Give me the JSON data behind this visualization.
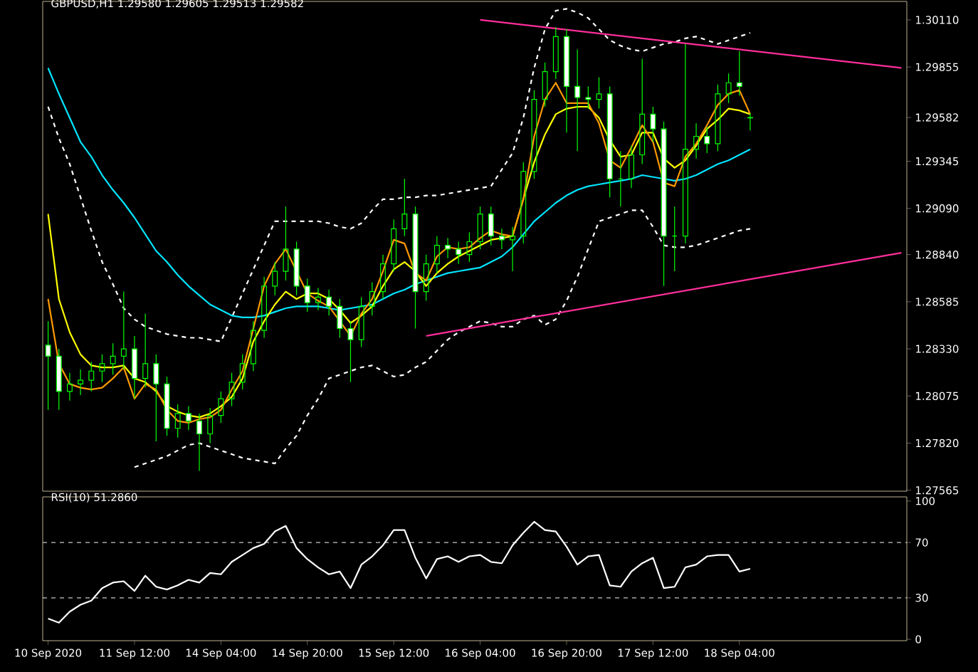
{
  "chart_data": [
    {
      "type": "candlestick",
      "title": "GBPUSD,H1  1.29580 1.29605 1.29513 1.29582",
      "tick_labels": "y",
      "ylim": [
        1.2756,
        1.3021
      ],
      "categories": [
        null,
        null,
        null,
        null,
        null,
        null,
        null,
        null,
        null,
        null,
        null,
        null,
        null,
        null,
        null,
        null,
        null,
        null,
        null,
        null,
        null,
        null,
        null,
        null,
        null,
        null,
        null,
        null,
        null,
        null,
        null,
        null,
        null,
        null,
        null,
        null,
        null,
        null,
        null,
        null,
        null,
        null,
        null,
        null,
        null,
        null,
        null,
        null,
        null,
        null,
        null,
        null,
        null,
        null,
        null,
        null,
        null,
        null,
        null,
        null,
        null,
        null,
        null,
        null,
        null,
        null,
        null,
        null,
        null,
        null,
        null,
        null,
        null,
        null,
        null,
        null,
        null,
        null,
        null,
        null
      ],
      "yticks": [
        {
          "value": 1.3011,
          "label": "1.30110"
        },
        {
          "value": 1.29855,
          "label": "1.29855"
        },
        {
          "value": 1.29582,
          "label": "1.29582"
        },
        {
          "value": 1.29345,
          "label": "1.29345"
        },
        {
          "value": 1.2909,
          "label": "1.29090"
        },
        {
          "value": 1.2884,
          "label": "1.28840"
        },
        {
          "value": 1.28585,
          "label": "1.28585"
        },
        {
          "value": 1.2833,
          "label": "1.28330"
        },
        {
          "value": 1.28075,
          "label": "1.28075"
        },
        {
          "value": 1.2782,
          "label": "1.27820"
        },
        {
          "value": 1.27565,
          "label": "1.27565"
        }
      ],
      "series": [
        {
          "type": "line",
          "color": "#ffffff",
          "line_style": "dashed",
          "values": [
            1.2964,
            1.2947,
            1.2933,
            1.2915,
            1.2897,
            1.288,
            1.2868,
            1.2855,
            1.2849,
            1.2845,
            1.2843,
            1.2841,
            1.284,
            1.2839,
            1.2839,
            1.2838,
            1.2837,
            1.285,
            1.2863,
            1.2876,
            1.2889,
            1.2902,
            1.2902,
            1.2902,
            1.2902,
            1.2902,
            1.2901,
            1.2899,
            1.2898,
            1.2901,
            1.2908,
            1.2914,
            1.2914,
            1.2915,
            1.2915,
            1.2916,
            1.2916,
            1.2917,
            1.2918,
            1.2919,
            1.292,
            1.2921,
            1.293,
            1.2939,
            1.2958,
            1.2985,
            1.3006,
            1.3016,
            1.3017,
            1.3015,
            1.3012,
            1.3006,
            1.3,
            1.2997,
            1.2995,
            1.2994,
            1.2996,
            1.2998,
            1.2999,
            1.3001,
            1.3002,
            1.3,
            1.2998,
            1.3,
            1.3002,
            1.3004,
            null,
            null,
            null,
            null,
            null,
            null,
            null,
            null,
            null,
            null,
            null,
            null,
            null,
            null
          ]
        },
        {
          "type": "line",
          "color": "#ffffff",
          "line_style": "dashed",
          "values": [
            null,
            null,
            null,
            null,
            null,
            null,
            null,
            null,
            1.2769,
            1.2771,
            1.2773,
            1.2775,
            1.2778,
            1.2781,
            1.2782,
            1.278,
            1.2778,
            1.2776,
            1.2774,
            1.2773,
            1.2772,
            1.2771,
            1.2779,
            1.2786,
            1.2797,
            1.2806,
            1.2817,
            1.2819,
            1.2821,
            1.2823,
            1.2824,
            1.2821,
            1.2818,
            1.2819,
            1.2823,
            1.2826,
            1.2832,
            1.2838,
            1.2842,
            1.2845,
            1.2848,
            1.2847,
            1.2845,
            1.2845,
            1.2849,
            1.2851,
            1.2846,
            1.2849,
            1.2859,
            1.2872,
            1.2887,
            1.2902,
            1.2904,
            1.2906,
            1.2908,
            1.2908,
            1.2899,
            1.2889,
            1.2888,
            1.2888,
            1.2889,
            1.2891,
            1.2893,
            1.2895,
            1.2897,
            1.2898,
            null,
            null,
            null,
            null,
            null,
            null,
            null,
            null,
            null,
            null,
            null,
            null,
            null,
            null
          ]
        },
        {
          "type": "line",
          "color": "#00e5ff",
          "values": [
            1.2985,
            1.2971,
            1.2958,
            1.2945,
            1.2937,
            1.2927,
            1.2919,
            1.2912,
            1.2904,
            1.2895,
            1.2886,
            1.288,
            1.2873,
            1.2867,
            1.2862,
            1.2857,
            1.2854,
            1.2851,
            1.285,
            1.285,
            1.2851,
            1.2853,
            1.2855,
            1.2856,
            1.2856,
            1.2856,
            1.2855,
            1.2854,
            1.2855,
            1.2856,
            1.2857,
            1.286,
            1.2863,
            1.2865,
            1.2868,
            1.287,
            1.2872,
            1.2874,
            1.2875,
            1.2876,
            1.2877,
            1.288,
            1.2883,
            1.2888,
            1.2895,
            1.2902,
            1.2907,
            1.2912,
            1.2916,
            1.2919,
            1.2921,
            1.2922,
            1.2923,
            1.2924,
            1.2925,
            1.2927,
            1.2926,
            1.2925,
            1.2924,
            1.2925,
            1.2927,
            1.293,
            1.2933,
            1.2935,
            1.2938,
            1.2941,
            null,
            null,
            null,
            null,
            null,
            null,
            null,
            null,
            null,
            null,
            null,
            null,
            null,
            null
          ]
        },
        {
          "type": "line",
          "color": "#ffff00",
          "values": [
            1.2906,
            1.286,
            1.2842,
            1.283,
            1.2824,
            1.2823,
            1.2823,
            1.2824,
            1.2817,
            1.2815,
            1.281,
            1.2802,
            1.2799,
            1.2797,
            1.2796,
            1.2798,
            1.2802,
            1.2807,
            1.2817,
            1.2837,
            1.2848,
            1.2857,
            1.2864,
            1.286,
            1.2863,
            1.2863,
            1.286,
            1.2854,
            1.2847,
            1.2851,
            1.2856,
            1.2867,
            1.2876,
            1.288,
            1.2875,
            1.2867,
            1.2874,
            1.2879,
            1.2883,
            1.2886,
            1.2889,
            1.2892,
            1.2893,
            1.2894,
            1.2914,
            1.2934,
            1.2949,
            1.296,
            1.2963,
            1.2964,
            1.2964,
            1.2958,
            1.2946,
            1.2937,
            1.2938,
            1.295,
            1.295,
            1.2936,
            1.2931,
            1.2935,
            1.2943,
            1.2952,
            1.2957,
            1.2963,
            1.2962,
            1.296,
            null,
            null,
            null,
            null,
            null,
            null,
            null,
            null,
            null,
            null,
            null,
            null,
            null,
            null
          ]
        },
        {
          "type": "line",
          "color": "#ff9900",
          "values": [
            1.286,
            1.2825,
            1.2814,
            1.2812,
            1.2811,
            1.2812,
            1.2817,
            1.2823,
            1.2806,
            1.2814,
            1.2811,
            1.28,
            1.2794,
            1.2793,
            1.2795,
            1.2796,
            1.28,
            1.2811,
            1.2821,
            1.2844,
            1.2867,
            1.2879,
            1.2887,
            1.2875,
            1.2863,
            1.2859,
            1.2856,
            1.2848,
            1.284,
            1.2852,
            1.286,
            1.2875,
            1.2892,
            1.289,
            1.2874,
            1.287,
            1.2883,
            1.2888,
            1.2887,
            1.2888,
            1.2893,
            1.2897,
            1.2895,
            1.2894,
            1.2914,
            1.2948,
            1.2968,
            1.2977,
            1.2966,
            1.2966,
            1.2966,
            1.2955,
            1.2935,
            1.2931,
            1.2942,
            1.2954,
            1.2945,
            1.2923,
            1.2921,
            1.2937,
            1.2944,
            1.2954,
            1.2965,
            1.2971,
            1.2973,
            1.296,
            null,
            null,
            null,
            null,
            null,
            null,
            null,
            null,
            null,
            null,
            null,
            null,
            null,
            null
          ]
        },
        {
          "type": "line",
          "color": "#ff2e9a",
          "values": [
            null,
            null,
            null,
            null,
            null,
            null,
            null,
            null,
            null,
            null,
            null,
            null,
            null,
            null,
            null,
            null,
            null,
            null,
            null,
            null,
            null,
            null,
            null,
            null,
            null,
            null,
            null,
            null,
            null,
            null,
            null,
            null,
            null,
            null,
            null,
            null,
            null,
            null,
            null,
            null,
            1.3011,
            null,
            null,
            null,
            null,
            null,
            null,
            null,
            null,
            null,
            null,
            null,
            null,
            null,
            null,
            null,
            null,
            null,
            null,
            null,
            null,
            null,
            null,
            null,
            null,
            null,
            null,
            null,
            null,
            null,
            null,
            null,
            null,
            null,
            null,
            null,
            null,
            null,
            null,
            1.2985
          ]
        },
        {
          "type": "line",
          "color": "#ff2e9a",
          "values": [
            null,
            null,
            null,
            null,
            null,
            null,
            null,
            null,
            null,
            null,
            null,
            null,
            null,
            null,
            null,
            null,
            null,
            null,
            null,
            null,
            null,
            null,
            null,
            null,
            null,
            null,
            null,
            null,
            null,
            null,
            null,
            null,
            null,
            null,
            null,
            1.284,
            null,
            null,
            null,
            null,
            null,
            null,
            null,
            null,
            null,
            null,
            null,
            null,
            null,
            null,
            null,
            null,
            null,
            null,
            null,
            null,
            null,
            null,
            null,
            null,
            null,
            null,
            null,
            null,
            null,
            null,
            null,
            null,
            null,
            null,
            null,
            null,
            null,
            null,
            null,
            null,
            null,
            null,
            null,
            1.2885
          ]
        },
        {
          "type": "candlestick",
          "color": "#00ff00",
          "ohlc": [
            [
              1.2835,
              1.2848,
              1.28,
              1.2829
            ],
            [
              1.2829,
              1.2833,
              1.28,
              1.281
            ],
            [
              1.281,
              1.282,
              1.2805,
              1.2814
            ],
            [
              1.2814,
              1.2822,
              1.2808,
              1.2816
            ],
            [
              1.2816,
              1.2826,
              1.281,
              1.2821
            ],
            [
              1.2821,
              1.283,
              1.2815,
              1.2825
            ],
            [
              1.2825,
              1.2836,
              1.2819,
              1.2829
            ],
            [
              1.2829,
              1.2864,
              1.2822,
              1.2833
            ],
            [
              1.2833,
              1.284,
              1.2806,
              1.2817
            ],
            [
              1.2817,
              1.2852,
              1.2812,
              1.2825
            ],
            [
              1.2825,
              1.283,
              1.2783,
              1.2814
            ],
            [
              1.2814,
              1.2818,
              1.2786,
              1.279
            ],
            [
              1.279,
              1.2803,
              1.2785,
              1.2798
            ],
            [
              1.2798,
              1.2802,
              1.2789,
              1.2794
            ],
            [
              1.2794,
              1.2798,
              1.2767,
              1.2787
            ],
            [
              1.2787,
              1.2801,
              1.2782,
              1.2797
            ],
            [
              1.2797,
              1.281,
              1.2793,
              1.2806
            ],
            [
              1.2806,
              1.282,
              1.2802,
              1.2815
            ],
            [
              1.2815,
              1.283,
              1.2811,
              1.2825
            ],
            [
              1.2825,
              1.2848,
              1.2821,
              1.2843
            ],
            [
              1.2843,
              1.2872,
              1.2839,
              1.2867
            ],
            [
              1.2867,
              1.288,
              1.2862,
              1.2875
            ],
            [
              1.2875,
              1.291,
              1.287,
              1.2887
            ],
            [
              1.2887,
              1.2891,
              1.2862,
              1.2867
            ],
            [
              1.2867,
              1.2871,
              1.2853,
              1.2858
            ],
            [
              1.2858,
              1.2866,
              1.2854,
              1.2861
            ],
            [
              1.2861,
              1.2865,
              1.2851,
              1.2856
            ],
            [
              1.2856,
              1.286,
              1.2839,
              1.2844
            ],
            [
              1.2844,
              1.2848,
              1.2815,
              1.2838
            ],
            [
              1.2838,
              1.2861,
              1.2834,
              1.2856
            ],
            [
              1.2856,
              1.2869,
              1.2851,
              1.2864
            ],
            [
              1.2864,
              1.2884,
              1.286,
              1.2879
            ],
            [
              1.2879,
              1.2903,
              1.2875,
              1.2898
            ],
            [
              1.2898,
              1.2925,
              1.2894,
              1.2906
            ],
            [
              1.2906,
              1.291,
              1.2844,
              1.2864
            ],
            [
              1.2864,
              1.2884,
              1.2859,
              1.2879
            ],
            [
              1.2879,
              1.2894,
              1.2874,
              1.2889
            ],
            [
              1.2889,
              1.2893,
              1.2882,
              1.2887
            ],
            [
              1.2887,
              1.2891,
              1.2879,
              1.2884
            ],
            [
              1.2884,
              1.2896,
              1.288,
              1.2891
            ],
            [
              1.2891,
              1.291,
              1.2887,
              1.2906
            ],
            [
              1.2906,
              1.291,
              1.2889,
              1.2894
            ],
            [
              1.2894,
              1.2898,
              1.2887,
              1.2892
            ],
            [
              1.2892,
              1.2899,
              1.2875,
              1.2894
            ],
            [
              1.2894,
              1.2934,
              1.289,
              1.2929
            ],
            [
              1.2929,
              1.2973,
              1.2925,
              1.2968
            ],
            [
              1.2968,
              1.2988,
              1.2964,
              1.2983
            ],
            [
              1.2983,
              1.3007,
              1.2979,
              1.3002
            ],
            [
              1.3002,
              1.3006,
              1.295,
              1.2975
            ],
            [
              1.2975,
              1.2995,
              1.294,
              1.2969
            ],
            [
              1.2969,
              1.2975,
              1.2963,
              1.2968
            ],
            [
              1.2968,
              1.298,
              1.2963,
              1.2971
            ],
            [
              1.2971,
              1.2975,
              1.2915,
              1.2925
            ],
            [
              1.2925,
              1.294,
              1.291,
              1.2925
            ],
            [
              1.2925,
              1.2943,
              1.292,
              1.2938
            ],
            [
              1.2938,
              1.299,
              1.2933,
              1.296
            ],
            [
              1.296,
              1.2964,
              1.2945,
              1.2952
            ],
            [
              1.2952,
              1.2956,
              1.2867,
              1.2894
            ],
            [
              1.2894,
              1.291,
              1.2875,
              1.2894
            ],
            [
              1.2894,
              1.2998,
              1.289,
              1.2941
            ],
            [
              1.2941,
              1.2955,
              1.2936,
              1.2948
            ],
            [
              1.2948,
              1.2953,
              1.2939,
              1.2944
            ],
            [
              1.2944,
              1.2976,
              1.294,
              1.2971
            ],
            [
              1.2971,
              1.2982,
              1.2966,
              1.2977
            ],
            [
              1.2977,
              1.2994,
              1.297,
              1.2975
            ],
            [
              1.2958,
              1.29605,
              1.29513,
              1.29582
            ],
            null,
            null,
            null,
            null,
            null,
            null,
            null,
            null,
            null,
            null,
            null,
            null,
            null,
            null
          ]
        }
      ]
    },
    {
      "type": "line",
      "title": "RSI(10) 51.2860",
      "ylim": [
        -1,
        103
      ],
      "categories": [
        "10 Sep 2020",
        null,
        null,
        null,
        null,
        null,
        null,
        null,
        "11 Sep 12:00",
        null,
        null,
        null,
        null,
        null,
        null,
        null,
        "14 Sep 04:00",
        null,
        null,
        null,
        null,
        null,
        null,
        null,
        "14 Sep 20:00",
        null,
        null,
        null,
        null,
        null,
        null,
        null,
        "15 Sep 12:00",
        null,
        null,
        null,
        null,
        null,
        null,
        null,
        "16 Sep 04:00",
        null,
        null,
        null,
        null,
        null,
        null,
        null,
        "16 Sep 20:00",
        null,
        null,
        null,
        null,
        null,
        null,
        null,
        "17 Sep 12:00",
        null,
        null,
        null,
        null,
        null,
        null,
        null,
        "18 Sep 04:00",
        null,
        null,
        null,
        null,
        null,
        null,
        null,
        null,
        null,
        null,
        null,
        null,
        null,
        null,
        null
      ],
      "yticks": [
        0,
        30,
        70,
        100
      ],
      "ref_lines": [
        {
          "axis": "y",
          "value": 70,
          "color": "#c8c8c8",
          "line_style": "dashed"
        },
        {
          "axis": "y",
          "value": 30,
          "color": "#c8c8c8",
          "line_style": "dashed"
        }
      ],
      "series": [
        {
          "color": "#ffffff",
          "values": [
            15,
            12,
            20,
            25,
            28,
            37,
            41,
            42,
            35,
            46,
            38,
            36,
            39,
            43,
            41,
            48,
            47,
            56,
            61,
            66,
            69,
            78,
            82,
            66,
            58,
            52,
            47,
            49,
            37,
            54,
            60,
            68,
            79,
            79,
            59,
            44,
            58,
            60,
            56,
            60,
            61,
            56,
            55,
            68,
            77,
            85,
            79,
            78,
            67,
            54,
            60,
            61,
            39,
            38,
            49,
            55,
            59,
            37,
            38,
            52,
            54,
            60,
            61,
            61,
            49,
            51,
            null,
            null,
            null,
            null,
            null,
            null,
            null,
            null,
            null,
            null,
            null,
            null,
            null,
            null
          ]
        }
      ]
    }
  ]
}
